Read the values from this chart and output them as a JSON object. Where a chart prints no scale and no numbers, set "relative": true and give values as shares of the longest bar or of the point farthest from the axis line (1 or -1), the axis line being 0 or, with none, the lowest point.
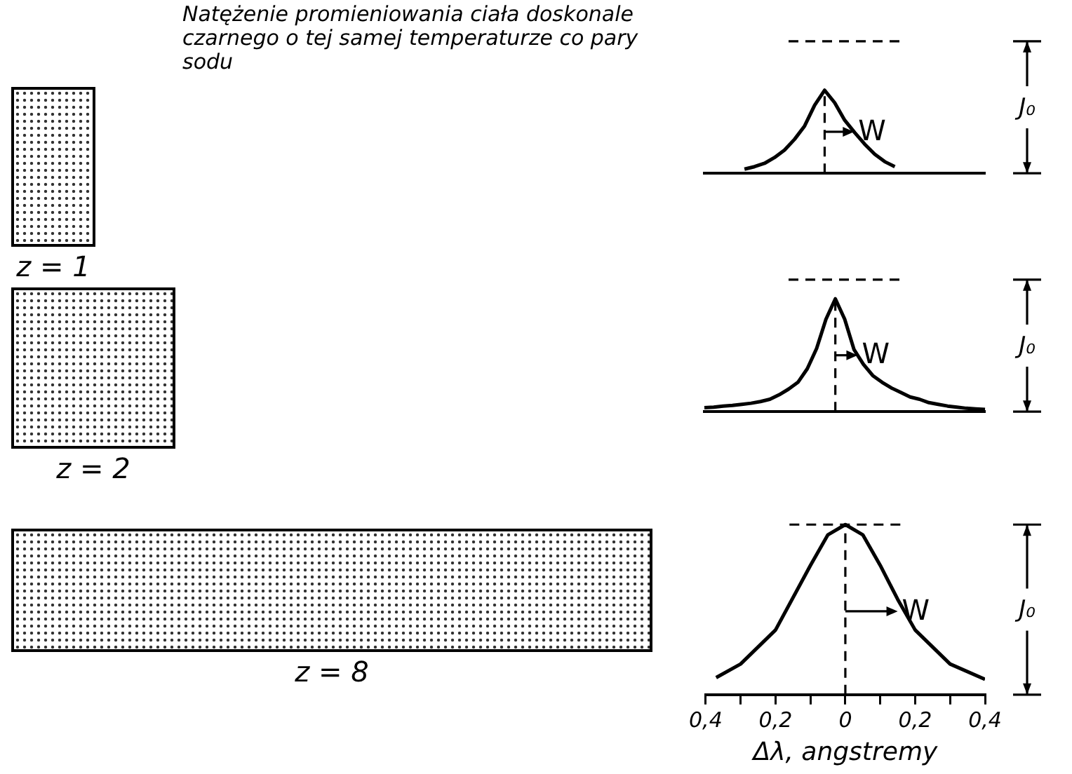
{
  "chart_data": [
    {
      "type": "line",
      "title": "Natężenie promieniowania ciała doskonale czarnego o tej samej temperaturze co pary sodu",
      "relative": true,
      "marker": "none",
      "categories": [
        null,
        null,
        null,
        null,
        null,
        null,
        null,
        null,
        null,
        null,
        null,
        null,
        null,
        null,
        null,
        null,
        null,
        null,
        null,
        null,
        null,
        null,
        null,
        null,
        null,
        null,
        null,
        null,
        null
      ],
      "series": [
        {
          "color": "#000000",
          "values": [
            null,
            null,
            null,
            null,
            0.05,
            0.08,
            0.12,
            0.19,
            0.28,
            0.41,
            0.57,
            0.82,
            1,
            0.85,
            0.64,
            0.49,
            0.35,
            0.23,
            0.14,
            0.08,
            null,
            null,
            null,
            null,
            null,
            null,
            null,
            null,
            null
          ]
        }
      ],
      "ref_lines": [
        {
          "axis": "y",
          "value": 1.59,
          "label": "J₀",
          "line_style": "dashed"
        }
      ],
      "annotations": [
        "z = 1",
        "W"
      ]
    },
    {
      "type": "line",
      "relative": true,
      "marker": "none",
      "categories": [
        null,
        null,
        null,
        null,
        null,
        null,
        null,
        null,
        null,
        null,
        null,
        null,
        null,
        null,
        null,
        null,
        null,
        null,
        null,
        null,
        null,
        null,
        null,
        null,
        null,
        null,
        null,
        null,
        null,
        null,
        null
      ],
      "series": [
        {
          "color": "#000000",
          "values": [
            0.035,
            0.04,
            0.05,
            0.055,
            0.065,
            0.075,
            0.09,
            0.11,
            0.15,
            0.2,
            0.26,
            0.38,
            0.56,
            0.82,
            1,
            0.82,
            0.55,
            0.42,
            0.32,
            0.26,
            0.21,
            0.17,
            0.13,
            0.11,
            0.08,
            0.065,
            0.05,
            0.04,
            0.03,
            0.025,
            0.02
          ]
        }
      ],
      "ref_lines": [
        {
          "axis": "y",
          "value": 1.17,
          "label": "J₀",
          "line_style": "dashed"
        }
      ],
      "annotations": [
        "z = 2",
        "W"
      ]
    },
    {
      "type": "line",
      "relative": true,
      "marker": "none",
      "xlabel": "Δλ, angstremy",
      "x": [
        -0.37,
        -0.3,
        -0.2,
        -0.1,
        -0.05,
        0,
        0.05,
        0.1,
        0.15,
        0.2,
        0.3,
        0.4
      ],
      "series": [
        {
          "color": "#000000",
          "values": [
            0.1,
            0.18,
            0.38,
            0.76,
            0.94,
            1,
            0.94,
            0.76,
            0.56,
            0.38,
            0.18,
            0.09
          ]
        }
      ],
      "xlim": [
        -0.4,
        0.4
      ],
      "xticks": [
        {
          "value": -0.4,
          "label": "0,4"
        },
        {
          "value": -0.3,
          "label": null
        },
        {
          "value": -0.2,
          "label": "0,2"
        },
        {
          "value": -0.1,
          "label": null
        },
        {
          "value": 0,
          "label": "0"
        },
        {
          "value": 0.1,
          "label": null
        },
        {
          "value": 0.2,
          "label": "0,2"
        },
        {
          "value": 0.3,
          "label": null
        },
        {
          "value": 0.4,
          "label": "0,4"
        }
      ],
      "ref_lines": [
        {
          "axis": "x",
          "value": 0,
          "line_style": "dashed"
        },
        {
          "axis": "y",
          "value": 1,
          "label": "J₀",
          "line_style": "dashed"
        }
      ],
      "annotations": [
        "z = 8",
        {
          "text": "W",
          "x": 0.15,
          "y": 0.49
        }
      ]
    }
  ]
}
